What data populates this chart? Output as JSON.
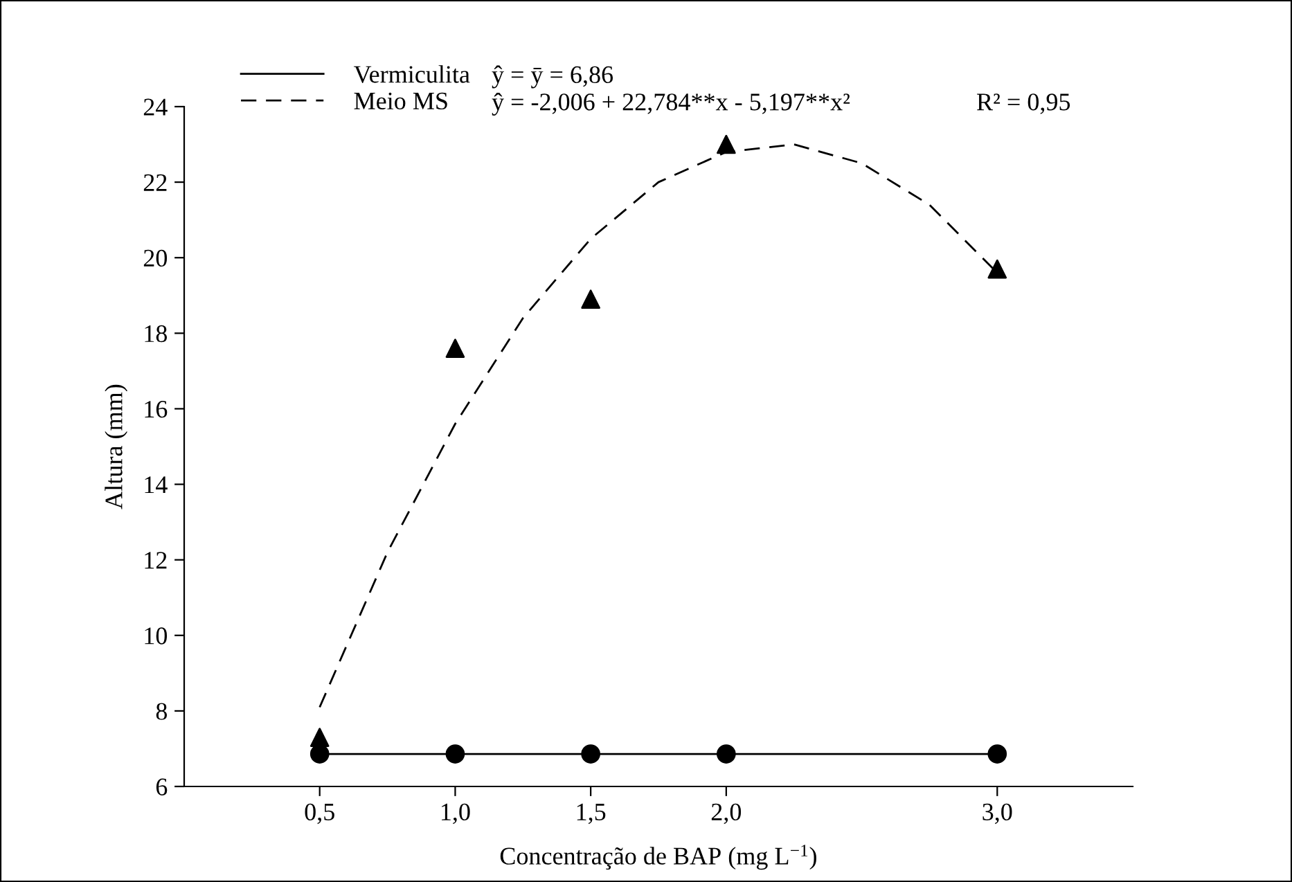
{
  "chart_data": {
    "type": "line",
    "xlabel": "Concentração de BAP (mg L$^{−1}$)",
    "ylabel": "Altura (mm)",
    "xlim": [
      0,
      3.5
    ],
    "ylim": [
      6,
      24
    ],
    "xticks": [
      {
        "value": 0.5,
        "label": "0,5"
      },
      {
        "value": 1.0,
        "label": "1,0"
      },
      {
        "value": 1.5,
        "label": "1,5"
      },
      {
        "value": 2.0,
        "label": "2,0"
      },
      {
        "value": 3.0,
        "label": "3,0"
      }
    ],
    "yticks": [
      6,
      8,
      10,
      12,
      14,
      16,
      18,
      20,
      22,
      24
    ],
    "grid": false,
    "legend": "top left",
    "annotations": [
      "ŷ = ȳ = 6,86",
      "ŷ = -2,006 + 22,784**x - 5,197**x²",
      "R² = 0,95"
    ],
    "series": [
      {
        "name": "Vermiculita",
        "color": "#000000",
        "marker": "circle",
        "line_style": "solid",
        "x": [
          0.5,
          1.0,
          1.5,
          2.0,
          3.0
        ],
        "values": [
          6.86,
          6.86,
          6.86,
          6.86,
          6.86
        ]
      },
      {
        "name": "Meio MS",
        "color": "#000000",
        "marker": "none",
        "line_style": "dashed",
        "x": [
          0.5,
          0.75,
          1.0,
          1.25,
          1.5,
          1.75,
          2.0,
          2.25,
          2.5,
          2.75,
          3.0
        ],
        "values": [
          8.1,
          12.2,
          15.6,
          18.4,
          20.5,
          22.0,
          22.8,
          23.0,
          22.5,
          21.4,
          19.6
        ]
      },
      {
        "type": "scatter",
        "color": "#000000",
        "marker": "triangle",
        "x": [
          0.5,
          1.0,
          1.5,
          2.0,
          3.0
        ],
        "values": [
          7.3,
          17.6,
          18.9,
          23.0,
          19.7
        ]
      }
    ]
  }
}
